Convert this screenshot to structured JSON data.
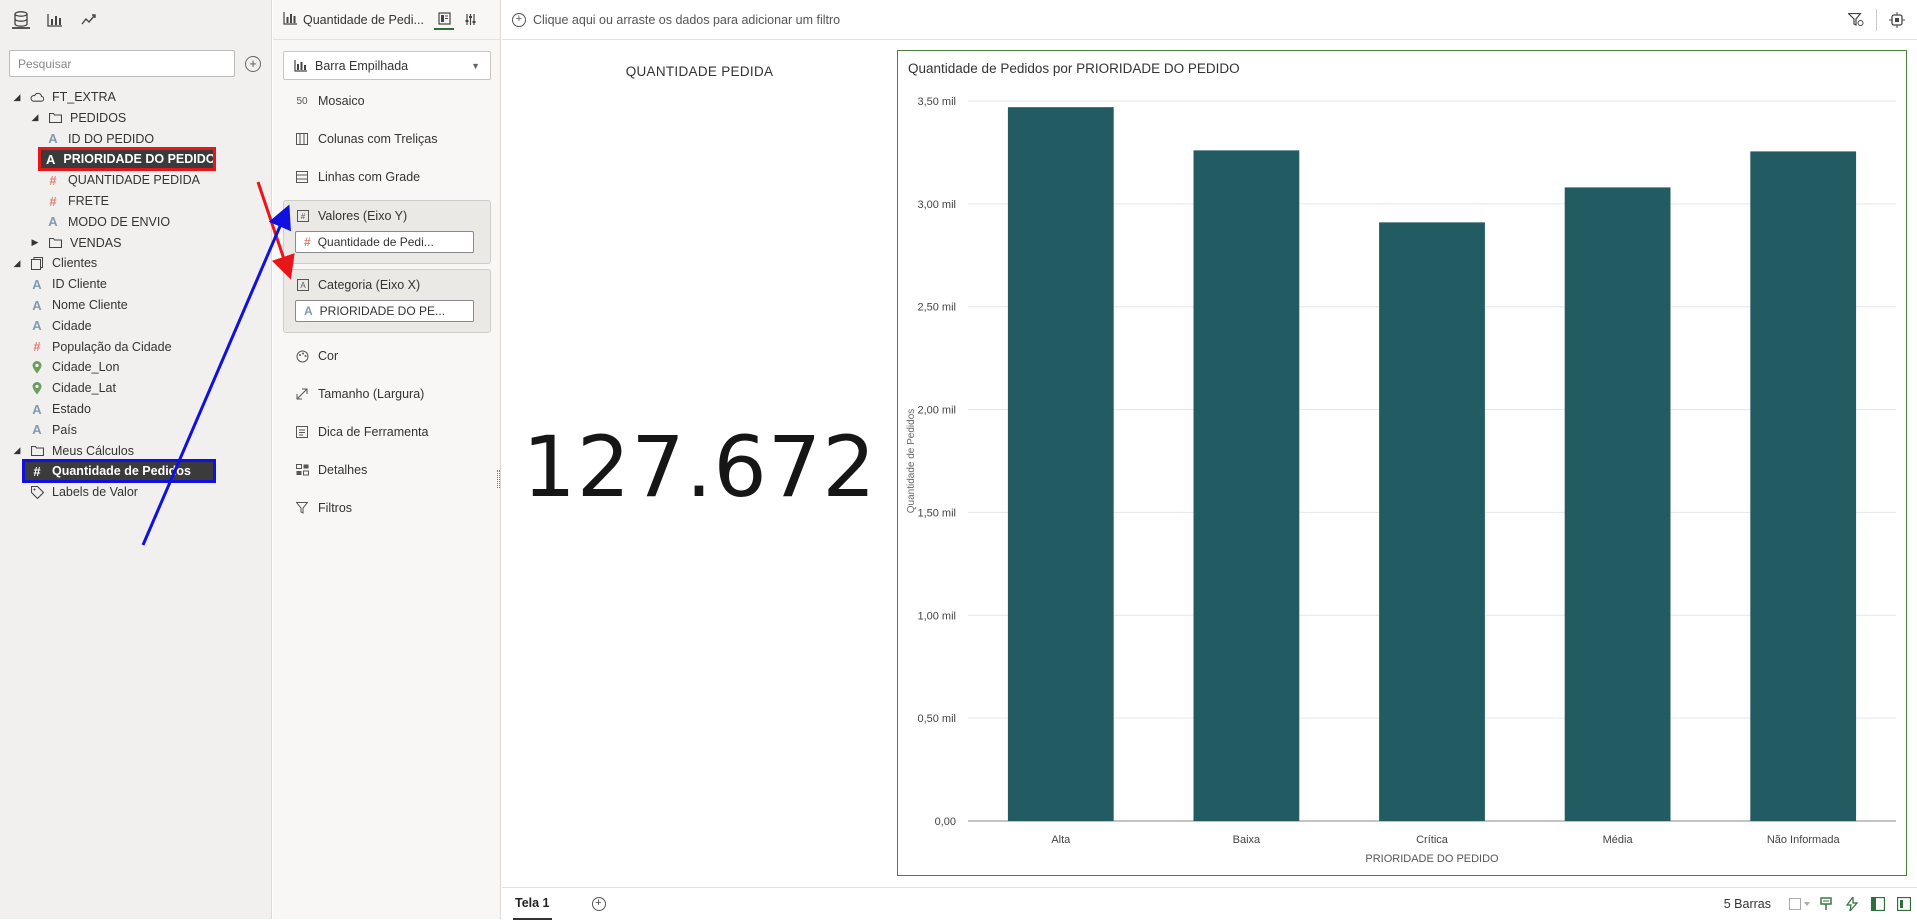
{
  "left_panel": {
    "search_placeholder": "Pesquisar",
    "tree": [
      {
        "label": "FT_EXTRA",
        "type": "subject-area",
        "level": 0,
        "expanded": true
      },
      {
        "label": "PEDIDOS",
        "type": "folder",
        "level": 1,
        "expanded": true
      },
      {
        "label": "ID DO PEDIDO",
        "type": "attribute",
        "level": 2
      },
      {
        "label": "PRIORIDADE DO PEDIDO",
        "type": "attribute",
        "level": 2,
        "selected": true,
        "highlight": "red"
      },
      {
        "label": "QUANTIDADE PEDIDA",
        "type": "measure",
        "level": 2
      },
      {
        "label": "FRETE",
        "type": "measure",
        "level": 2
      },
      {
        "label": "MODO DE ENVIO",
        "type": "attribute",
        "level": 2
      },
      {
        "label": "VENDAS",
        "type": "folder",
        "level": 1,
        "expanded": false
      },
      {
        "label": "Clientes",
        "type": "dataset",
        "level": 0,
        "expanded": true
      },
      {
        "label": "ID Cliente",
        "type": "attribute",
        "level": 1
      },
      {
        "label": "Nome Cliente",
        "type": "attribute",
        "level": 1
      },
      {
        "label": "Cidade",
        "type": "attribute",
        "level": 1
      },
      {
        "label": "População da Cidade",
        "type": "measure",
        "level": 1
      },
      {
        "label": "Cidade_Lon",
        "type": "geo",
        "level": 1
      },
      {
        "label": "Cidade_Lat",
        "type": "geo",
        "level": 1
      },
      {
        "label": "Estado",
        "type": "attribute",
        "level": 1
      },
      {
        "label": "País",
        "type": "attribute",
        "level": 1
      },
      {
        "label": "Meus Cálculos",
        "type": "folder",
        "level": 0,
        "expanded": true
      },
      {
        "label": "Quantidade de Pedidos",
        "type": "measure",
        "level": 1,
        "selected": true,
        "highlight": "blue"
      },
      {
        "label": "Labels de Valor",
        "type": "tag",
        "level": 0
      }
    ]
  },
  "grammar_panel": {
    "viz_title": "Quantidade de Pedi...",
    "chart_type": "Barra Empilhada",
    "options_top": [
      {
        "label": "Mosaico",
        "icon": "mosaic-icon"
      },
      {
        "label": "Colunas com Treliças",
        "icon": "trellis-columns-icon"
      },
      {
        "label": "Linhas com Grade",
        "icon": "grid-rows-icon"
      }
    ],
    "drop_values": {
      "label": "Valores (Eixo Y)",
      "pill": "Quantidade de Pedi..."
    },
    "drop_category": {
      "label": "Categoria (Eixo X)",
      "pill": "PRIORIDADE DO PE..."
    },
    "options_bottom": [
      {
        "label": "Cor",
        "icon": "palette-icon"
      },
      {
        "label": "Tamanho (Largura)",
        "icon": "size-icon"
      },
      {
        "label": "Dica de Ferramenta",
        "icon": "tooltip-icon"
      },
      {
        "label": "Detalhes",
        "icon": "details-icon"
      },
      {
        "label": "Filtros",
        "icon": "filter-icon"
      }
    ]
  },
  "canvas": {
    "filter_hint": "Clique aqui ou arraste os dados para adicionar um filtro",
    "kpi_title": "QUANTIDADE PEDIDA",
    "kpi_value": "127.672",
    "sheet_tab": "Tela 1",
    "bar_count": "5 Barras"
  },
  "colors": {
    "bar": "#235b63",
    "highlight_red": "#e8151b",
    "highlight_blue": "#1010e0",
    "chart_border": "#4d7c3d"
  },
  "chart_data": {
    "type": "bar",
    "title": "Quantidade de Pedidos por PRIORIDADE DO PEDIDO",
    "xlabel": "PRIORIDADE DO PEDIDO",
    "ylabel": "Quantidade de Pedidos",
    "categories": [
      "Alta",
      "Baixa",
      "Crítica",
      "Média",
      "Não Informada"
    ],
    "values": [
      3470,
      3260,
      2910,
      3080,
      3255
    ],
    "ylim": [
      0,
      3500
    ],
    "yticks": [
      0,
      500,
      1000,
      1500,
      2000,
      2500,
      3000,
      3500
    ],
    "ytick_labels": [
      "0,00",
      "0,50 mil",
      "1,00 mil",
      "1,50 mil",
      "2,00 mil",
      "2,50 mil",
      "3,00 mil",
      "3,50 mil"
    ],
    "grid": true,
    "legend": "none"
  }
}
